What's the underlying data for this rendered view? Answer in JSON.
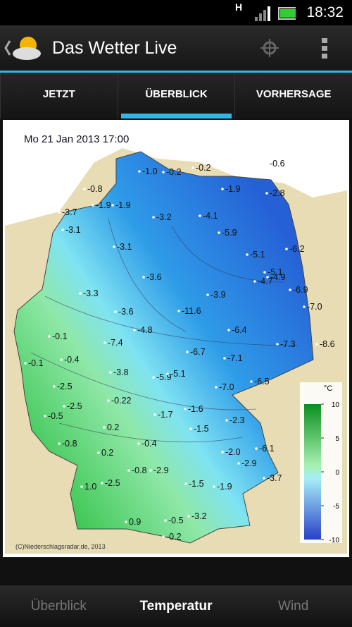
{
  "status_bar": {
    "network": "H",
    "time": "18:32"
  },
  "app_bar": {
    "title": "Das Wetter Live"
  },
  "tabs": [
    "JETZT",
    "ÜBERBLICK",
    "VORHERSAGE"
  ],
  "map": {
    "timestamp": "Mo 21 Jan 2013 17:00",
    "temperatures": [
      "-0.6",
      "-0.2",
      "-1.0",
      "-0.2",
      "-0.8",
      "-1.9",
      "-2.8",
      "-1.9",
      "-1.9",
      "-3.7",
      "-3.2",
      "-4.1",
      "-3.1",
      "-5.9",
      "-3.1",
      "-6.2",
      "-5.1",
      "-5.1",
      "-3.6",
      "-4.9",
      "-4.7",
      "-6.9",
      "-3.3",
      "-3.9",
      "-7.0",
      "-3.6",
      "-11.6",
      "-6.4",
      "-4.8",
      "-0.1",
      "-7.4",
      "-7.3",
      "-8.6",
      "-6.7",
      "-0.4",
      "-7.1",
      "-0.1",
      "-3.8",
      "-5.9",
      "-5.1",
      "-6.5",
      "-2.5",
      "-7.0",
      "-0.22",
      "-2.5",
      "-1.7",
      "-1.6",
      "-0.5",
      "-2.3",
      "0.2",
      "-1.5",
      "-0.8",
      "-0.4",
      "-6.1",
      "0.2",
      "-2.0",
      "-2.9",
      "-0.8",
      "-2.9",
      "-3.7",
      "1.0",
      "-2.5",
      "-1.5",
      "-1.9",
      "-3.2",
      "0.9",
      "-0.5",
      "-0.2"
    ],
    "legend": {
      "unit": "°C",
      "ticks": [
        10,
        5,
        0,
        -5,
        -10
      ]
    },
    "credit": "(C)Niederschlagsradar.de, 2013"
  },
  "bottom_tabs": [
    "Überblick",
    "Temperatur",
    "Wind"
  ]
}
